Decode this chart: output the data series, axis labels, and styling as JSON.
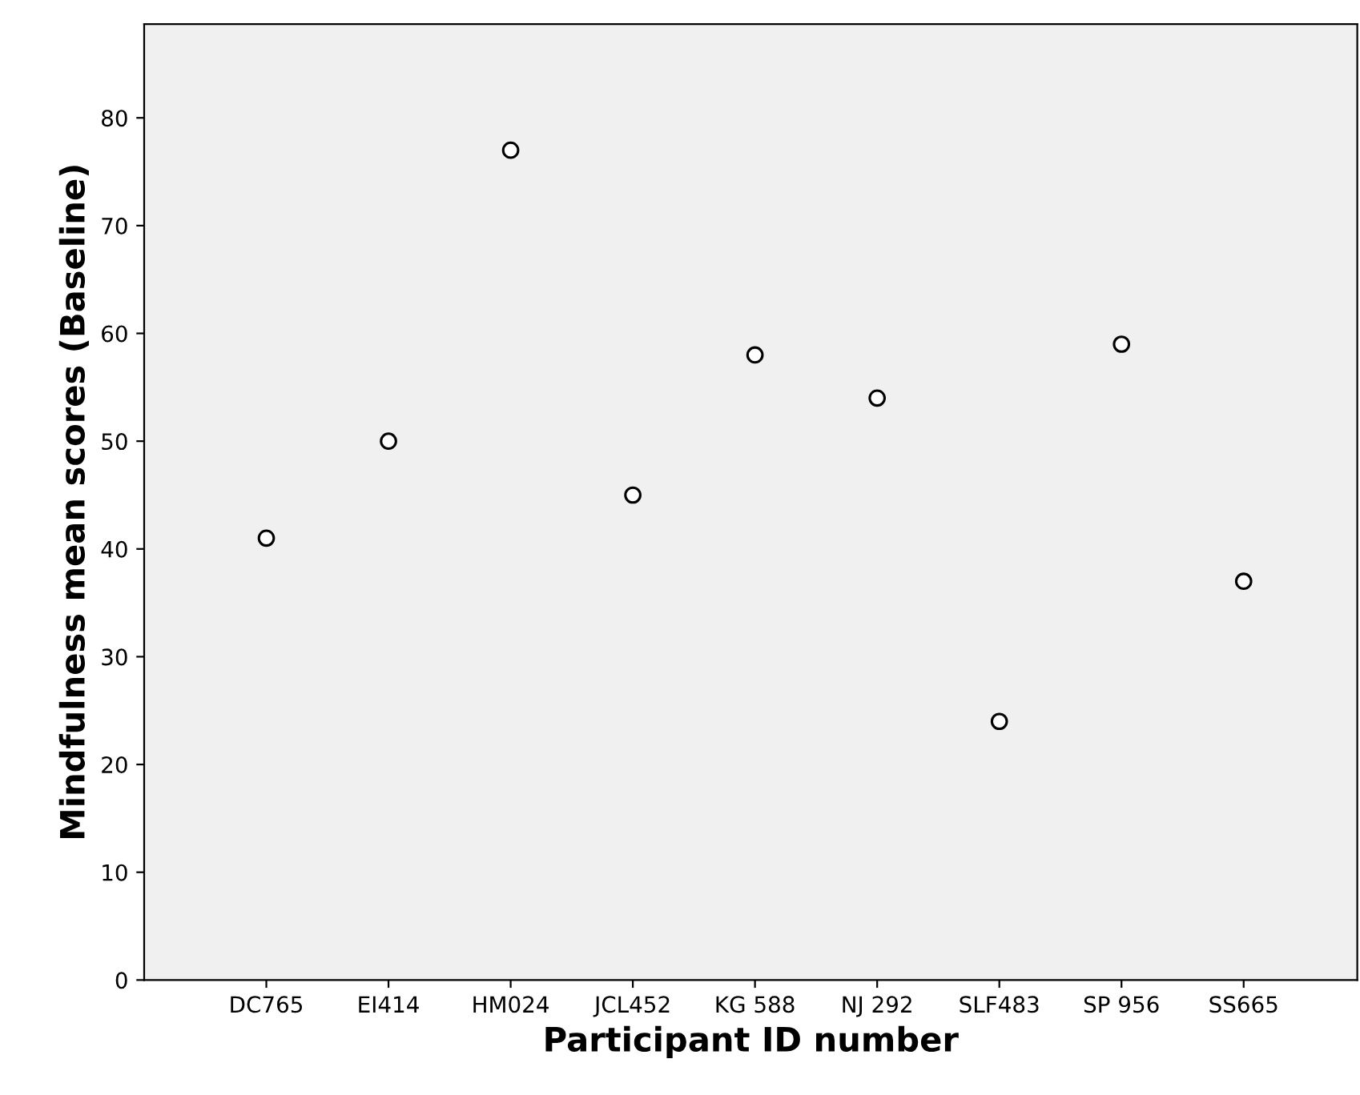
{
  "chart_data": {
    "type": "scatter",
    "xlabel": "Participant ID number",
    "ylabel": "Mindfulness mean scores (Baseline)",
    "categories": [
      "DC765",
      "EI414",
      "HM024",
      "JCL452",
      "KG 588",
      "NJ 292",
      "SLF483",
      "SP 956",
      "SS665"
    ],
    "series": [
      {
        "color": "#000000",
        "values": [
          41,
          50,
          77,
          45,
          58,
          54,
          24,
          59,
          37
        ]
      }
    ],
    "ylim": [
      0,
      88.7
    ],
    "yticks": [
      0,
      10,
      20,
      30,
      40,
      50,
      60,
      70,
      80
    ],
    "grid": false,
    "legend": false,
    "marker": "circle"
  }
}
